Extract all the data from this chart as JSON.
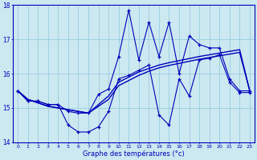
{
  "xlabel": "Graphe des températures (°c)",
  "background_color": "#cce8f0",
  "grid_color": "#99cce0",
  "line_color": "#0000bb",
  "hours": [
    0,
    1,
    2,
    3,
    4,
    5,
    6,
    7,
    8,
    9,
    10,
    11,
    12,
    13,
    14,
    15,
    16,
    17,
    18,
    19,
    20,
    21,
    22,
    23
  ],
  "temp_max": [
    15.5,
    15.2,
    15.2,
    15.1,
    15.1,
    14.9,
    14.85,
    14.85,
    15.4,
    15.55,
    16.5,
    17.85,
    16.4,
    17.5,
    16.5,
    17.5,
    16.0,
    17.1,
    16.85,
    16.75,
    16.75,
    15.85,
    15.5,
    15.5
  ],
  "temp_min": [
    15.5,
    15.2,
    15.2,
    15.1,
    15.1,
    14.5,
    14.3,
    14.3,
    14.45,
    14.9,
    15.85,
    15.95,
    16.1,
    16.25,
    14.8,
    14.5,
    15.85,
    15.35,
    16.4,
    16.45,
    16.55,
    15.75,
    15.45,
    15.45
  ],
  "trend1": [
    15.5,
    15.25,
    15.15,
    15.05,
    15.0,
    14.95,
    14.9,
    14.85,
    15.1,
    15.35,
    15.75,
    15.9,
    16.05,
    16.15,
    16.25,
    16.32,
    16.38,
    16.44,
    16.5,
    16.55,
    16.6,
    16.65,
    16.7,
    15.5
  ],
  "trend2": [
    15.5,
    15.25,
    15.15,
    15.05,
    15.0,
    14.95,
    14.9,
    14.85,
    15.05,
    15.25,
    15.65,
    15.8,
    15.95,
    16.07,
    16.17,
    16.24,
    16.3,
    16.36,
    16.42,
    16.47,
    16.52,
    16.57,
    16.62,
    15.5
  ],
  "ylim": [
    14.0,
    18.0
  ],
  "yticks": [
    14,
    15,
    16,
    17,
    18
  ],
  "figsize": [
    3.2,
    2.0
  ],
  "dpi": 100
}
